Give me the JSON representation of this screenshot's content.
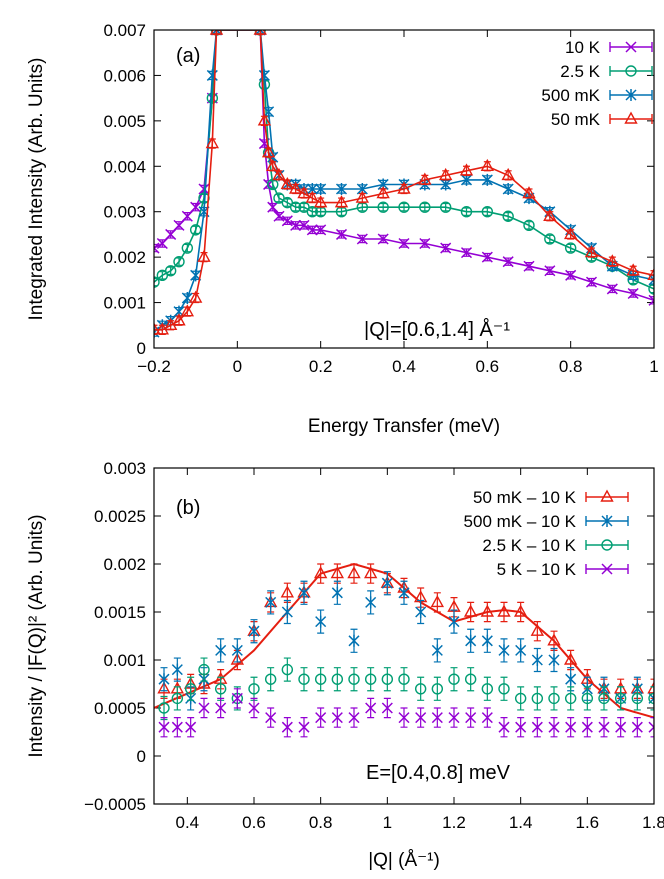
{
  "colors": {
    "c10K": "#9400d3",
    "c25K": "#009e73",
    "c500mK": "#0072b2",
    "c50mK": "#e51e10",
    "c5K": "#9400d3"
  },
  "chart_data": [
    {
      "type": "line",
      "panel_label": "(a)",
      "xlabel": "Energy Transfer (meV)",
      "ylabel": "Integrated Intensity (Arb. Units)",
      "xlim": [
        -0.2,
        1.0
      ],
      "ylim": [
        0,
        0.007
      ],
      "xticks": [
        -0.2,
        0,
        0.2,
        0.4,
        0.6,
        0.8,
        1
      ],
      "xtick_labels": [
        "−0.2",
        "0",
        "0.2",
        "0.4",
        "0.6",
        "0.8",
        "1"
      ],
      "yticks": [
        0,
        0.001,
        0.002,
        0.003,
        0.004,
        0.005,
        0.006,
        0.007
      ],
      "ytick_labels": [
        "0",
        "0.001",
        "0.002",
        "0.003",
        "0.004",
        "0.005",
        "0.006",
        "0.007"
      ],
      "legend_position": "top-right",
      "annotation": "|Q|=[0.6,1.4] Å⁻¹",
      "series": [
        {
          "name": "10 K",
          "color_key": "c10K",
          "marker": "x",
          "line": true,
          "err": 8e-05,
          "x": [
            -0.2,
            -0.18,
            -0.16,
            -0.14,
            -0.12,
            -0.1,
            -0.08,
            -0.06,
            -0.05,
            0.055,
            0.065,
            0.075,
            0.085,
            0.1,
            0.12,
            0.14,
            0.16,
            0.18,
            0.2,
            0.25,
            0.3,
            0.35,
            0.4,
            0.45,
            0.5,
            0.55,
            0.6,
            0.65,
            0.7,
            0.75,
            0.8,
            0.85,
            0.9,
            0.95,
            1.0
          ],
          "y": [
            0.0022,
            0.0023,
            0.0025,
            0.0027,
            0.0029,
            0.0031,
            0.0035,
            0.0055,
            0.007,
            0.007,
            0.0045,
            0.0036,
            0.0031,
            0.0029,
            0.0028,
            0.0027,
            0.0027,
            0.0026,
            0.0026,
            0.0025,
            0.0024,
            0.0024,
            0.0023,
            0.0023,
            0.0022,
            0.0021,
            0.002,
            0.0019,
            0.0018,
            0.0017,
            0.0016,
            0.00145,
            0.0013,
            0.0012,
            0.00105
          ]
        },
        {
          "name": "2.5 K",
          "color_key": "c25K",
          "marker": "o",
          "line": true,
          "err": 8e-05,
          "x": [
            -0.2,
            -0.18,
            -0.16,
            -0.14,
            -0.12,
            -0.1,
            -0.08,
            -0.06,
            -0.05,
            0.055,
            0.065,
            0.075,
            0.085,
            0.1,
            0.12,
            0.14,
            0.16,
            0.18,
            0.2,
            0.25,
            0.3,
            0.35,
            0.4,
            0.45,
            0.5,
            0.55,
            0.6,
            0.65,
            0.7,
            0.75,
            0.8,
            0.85,
            0.9,
            0.95,
            1.0
          ],
          "y": [
            0.00145,
            0.0016,
            0.0017,
            0.0019,
            0.0022,
            0.0026,
            0.0033,
            0.0055,
            0.007,
            0.007,
            0.0058,
            0.0043,
            0.0036,
            0.0033,
            0.0032,
            0.0031,
            0.0031,
            0.003,
            0.003,
            0.003,
            0.0031,
            0.0031,
            0.0031,
            0.0031,
            0.0031,
            0.003,
            0.003,
            0.0029,
            0.0027,
            0.0024,
            0.0022,
            0.002,
            0.0018,
            0.0015,
            0.0013
          ]
        },
        {
          "name": "500 mK",
          "color_key": "c500mK",
          "marker": "*",
          "line": true,
          "err": 9e-05,
          "x": [
            -0.2,
            -0.18,
            -0.16,
            -0.14,
            -0.12,
            -0.1,
            -0.08,
            -0.06,
            -0.05,
            0.055,
            0.065,
            0.075,
            0.085,
            0.1,
            0.12,
            0.14,
            0.16,
            0.18,
            0.2,
            0.25,
            0.3,
            0.35,
            0.4,
            0.45,
            0.5,
            0.55,
            0.6,
            0.65,
            0.7,
            0.75,
            0.8,
            0.85,
            0.9,
            0.95,
            1.0
          ],
          "y": [
            0.00035,
            0.0005,
            0.0006,
            0.0008,
            0.0011,
            0.0016,
            0.003,
            0.006,
            0.007,
            0.007,
            0.006,
            0.0052,
            0.0042,
            0.0038,
            0.0036,
            0.0036,
            0.0035,
            0.0035,
            0.0035,
            0.0035,
            0.0035,
            0.0036,
            0.0036,
            0.0036,
            0.0036,
            0.0037,
            0.0037,
            0.0035,
            0.0033,
            0.003,
            0.0026,
            0.0022,
            0.0018,
            0.0016,
            0.0015
          ]
        },
        {
          "name": "50 mK",
          "color_key": "c50mK",
          "marker": "triangle",
          "line": true,
          "err": 0.0001,
          "x": [
            -0.2,
            -0.18,
            -0.16,
            -0.14,
            -0.12,
            -0.1,
            -0.08,
            -0.06,
            -0.05,
            0.055,
            0.065,
            0.075,
            0.085,
            0.1,
            0.12,
            0.14,
            0.16,
            0.18,
            0.2,
            0.25,
            0.3,
            0.35,
            0.4,
            0.45,
            0.5,
            0.55,
            0.6,
            0.65,
            0.7,
            0.75,
            0.8,
            0.85,
            0.9,
            0.95,
            1.0
          ],
          "y": [
            0.0004,
            0.0004,
            0.0005,
            0.0006,
            0.0008,
            0.0011,
            0.002,
            0.0045,
            0.007,
            0.007,
            0.005,
            0.0043,
            0.004,
            0.0038,
            0.0036,
            0.0035,
            0.0034,
            0.0033,
            0.0032,
            0.0032,
            0.0033,
            0.0034,
            0.0035,
            0.0037,
            0.0038,
            0.0039,
            0.004,
            0.0038,
            0.0034,
            0.0029,
            0.0025,
            0.0021,
            0.0019,
            0.0017,
            0.0016
          ]
        }
      ]
    },
    {
      "type": "scatter",
      "panel_label": "(b)",
      "xlabel": "|Q| (Å⁻¹)",
      "ylabel": "Intensity / |F(Q)|² (Arb. Units)",
      "xlim": [
        0.3,
        1.8
      ],
      "ylim": [
        -0.0005,
        0.003
      ],
      "xticks": [
        0.4,
        0.6,
        0.8,
        1,
        1.2,
        1.4,
        1.6,
        1.8
      ],
      "xtick_labels": [
        "0.4",
        "0.6",
        "0.8",
        "1",
        "1.2",
        "1.4",
        "1.6",
        "1.8"
      ],
      "yticks": [
        -0.0005,
        0,
        0.0005,
        0.001,
        0.0015,
        0.002,
        0.0025,
        0.003
      ],
      "ytick_labels": [
        "−0.0005",
        "0",
        "0.0005",
        "0.001",
        "0.0015",
        "0.002",
        "0.0025",
        "0.003"
      ],
      "legend_position": "top-right",
      "annotation": "E=[0.4,0.8] meV",
      "fit_curve": {
        "color_key": "c50mK",
        "x": [
          0.3,
          0.4,
          0.5,
          0.6,
          0.7,
          0.8,
          0.9,
          1.0,
          1.1,
          1.2,
          1.3,
          1.35,
          1.4,
          1.5,
          1.6,
          1.7,
          1.8
        ],
        "y": [
          0.0005,
          0.00065,
          0.0008,
          0.0011,
          0.0015,
          0.0019,
          0.002,
          0.0019,
          0.0016,
          0.0014,
          0.0015,
          0.00152,
          0.0015,
          0.0012,
          0.0008,
          0.0005,
          0.0004
        ]
      },
      "series": [
        {
          "name": "50 mK – 10 K",
          "color_key": "c50mK",
          "marker": "triangle",
          "err": 0.0001,
          "x": [
            0.33,
            0.37,
            0.41,
            0.45,
            0.5,
            0.55,
            0.6,
            0.65,
            0.7,
            0.75,
            0.8,
            0.85,
            0.9,
            0.95,
            1.0,
            1.05,
            1.1,
            1.15,
            1.2,
            1.25,
            1.3,
            1.35,
            1.4,
            1.45,
            1.5,
            1.55,
            1.6,
            1.65,
            1.7,
            1.75,
            1.8
          ],
          "y": [
            0.0007,
            0.0007,
            0.00075,
            0.00075,
            0.0008,
            0.001,
            0.0013,
            0.0016,
            0.0017,
            0.0017,
            0.0019,
            0.0019,
            0.0019,
            0.0019,
            0.0018,
            0.00175,
            0.00165,
            0.0016,
            0.00155,
            0.0015,
            0.0015,
            0.0015,
            0.0015,
            0.0013,
            0.0012,
            0.001,
            0.0008,
            0.0007,
            0.0007,
            0.0007,
            0.0007
          ]
        },
        {
          "name": "500 mK – 10 K",
          "color_key": "c500mK",
          "marker": "*",
          "err": 0.00012,
          "x": [
            0.33,
            0.37,
            0.41,
            0.45,
            0.5,
            0.55,
            0.6,
            0.65,
            0.7,
            0.75,
            0.8,
            0.85,
            0.9,
            0.95,
            1.0,
            1.05,
            1.1,
            1.15,
            1.2,
            1.25,
            1.3,
            1.35,
            1.4,
            1.45,
            1.5,
            1.55,
            1.6,
            1.65,
            1.7,
            1.75,
            1.8
          ],
          "y": [
            0.0008,
            0.0009,
            0.0006,
            0.0008,
            0.0011,
            0.0011,
            0.0013,
            0.0016,
            0.0015,
            0.0017,
            0.0014,
            0.0017,
            0.0012,
            0.0016,
            0.0018,
            0.0017,
            0.0015,
            0.0011,
            0.0014,
            0.0012,
            0.0012,
            0.0011,
            0.0011,
            0.001,
            0.001,
            0.0008,
            0.0007,
            0.0007,
            0.0006,
            0.0007,
            0.0006
          ]
        },
        {
          "name": "2.5 K – 10 K",
          "color_key": "c25K",
          "marker": "o",
          "err": 0.00012,
          "x": [
            0.33,
            0.37,
            0.41,
            0.45,
            0.5,
            0.55,
            0.6,
            0.65,
            0.7,
            0.75,
            0.8,
            0.85,
            0.9,
            0.95,
            1.0,
            1.05,
            1.1,
            1.15,
            1.2,
            1.25,
            1.3,
            1.35,
            1.4,
            1.45,
            1.5,
            1.55,
            1.6,
            1.65,
            1.7,
            1.75,
            1.8
          ],
          "y": [
            0.0005,
            0.0006,
            0.0007,
            0.0009,
            0.0007,
            0.0006,
            0.0007,
            0.0008,
            0.0009,
            0.0008,
            0.0008,
            0.0008,
            0.0008,
            0.0008,
            0.0008,
            0.0008,
            0.0007,
            0.0007,
            0.0008,
            0.0008,
            0.0007,
            0.0007,
            0.0006,
            0.0006,
            0.0006,
            0.0006,
            0.0006,
            0.0006,
            0.0006,
            0.0006,
            0.0006
          ]
        },
        {
          "name": "5 K – 10 K",
          "color_key": "c5K",
          "marker": "x",
          "err": 0.0001,
          "x": [
            0.33,
            0.37,
            0.41,
            0.45,
            0.5,
            0.55,
            0.6,
            0.65,
            0.7,
            0.75,
            0.8,
            0.85,
            0.9,
            0.95,
            1.0,
            1.05,
            1.1,
            1.15,
            1.2,
            1.25,
            1.3,
            1.35,
            1.4,
            1.45,
            1.5,
            1.55,
            1.6,
            1.65,
            1.7,
            1.75,
            1.8
          ],
          "y": [
            0.0003,
            0.0003,
            0.0003,
            0.0005,
            0.0005,
            0.0006,
            0.0005,
            0.0004,
            0.0003,
            0.0003,
            0.0004,
            0.0004,
            0.0004,
            0.0005,
            0.0005,
            0.0004,
            0.0004,
            0.0004,
            0.0004,
            0.0004,
            0.0004,
            0.0003,
            0.0003,
            0.0003,
            0.0003,
            0.0003,
            0.0003,
            0.0003,
            0.0003,
            0.0003,
            0.0003
          ]
        }
      ]
    }
  ]
}
